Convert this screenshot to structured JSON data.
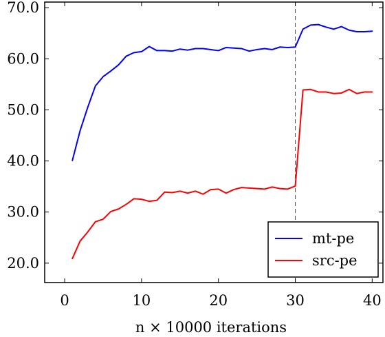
{
  "chart_data": {
    "type": "line",
    "xlabel": "n × 10000 iterations",
    "ylabel": "",
    "xlim": [
      -2.6,
      41.4
    ],
    "ylim": [
      16.2,
      71.1
    ],
    "x_ticks": [
      0,
      10,
      20,
      30,
      40
    ],
    "x_tick_labels": [
      "0",
      "10",
      "20",
      "30",
      "40"
    ],
    "y_ticks": [
      20,
      30,
      40,
      50,
      60,
      70
    ],
    "y_tick_labels": [
      "20.0",
      "30.0",
      "40.0",
      "50.0",
      "60.0",
      "70.0"
    ],
    "grid": false,
    "legend_position": "bottom-right",
    "vline": {
      "x": 30,
      "style": "dashed",
      "color": "#555555"
    },
    "x": [
      1,
      2,
      3,
      4,
      5,
      6,
      7,
      8,
      9,
      10,
      11,
      12,
      13,
      14,
      15,
      16,
      17,
      18,
      19,
      20,
      21,
      22,
      23,
      24,
      25,
      26,
      27,
      28,
      29,
      30,
      31,
      32,
      33,
      34,
      35,
      36,
      37,
      38,
      39,
      40
    ],
    "series": [
      {
        "name": "mt-pe",
        "color": "#0000ff",
        "values": [
          40.1,
          45.9,
          50.5,
          54.7,
          56.5,
          57.6,
          58.8,
          60.5,
          61.2,
          61.4,
          62.4,
          61.6,
          61.6,
          61.5,
          61.9,
          61.7,
          62.0,
          62.0,
          61.8,
          61.6,
          62.2,
          62.1,
          62.0,
          61.5,
          61.8,
          62.0,
          61.8,
          62.3,
          62.2,
          62.3,
          65.8,
          66.6,
          66.7,
          66.2,
          65.8,
          66.3,
          65.6,
          65.3,
          65.3,
          65.4
        ]
      },
      {
        "name": "src-pe",
        "color": "#ff0000",
        "values": [
          20.9,
          24.3,
          26.1,
          28.1,
          28.6,
          30.1,
          30.6,
          31.5,
          32.6,
          32.5,
          32.1,
          32.3,
          33.9,
          33.8,
          34.1,
          33.7,
          34.1,
          33.5,
          34.4,
          34.5,
          33.7,
          34.4,
          34.8,
          34.7,
          34.6,
          34.5,
          34.9,
          34.6,
          34.5,
          35.1,
          53.9,
          54.0,
          53.5,
          53.5,
          53.2,
          53.3,
          54.0,
          53.2,
          53.5,
          53.5
        ]
      }
    ]
  }
}
